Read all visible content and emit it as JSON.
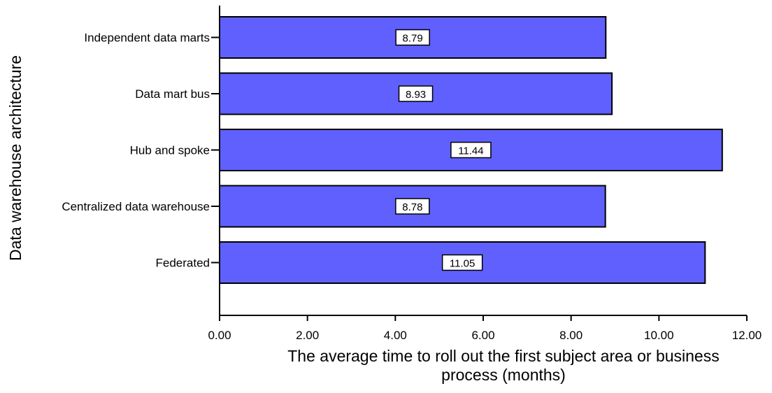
{
  "chart_data": {
    "type": "bar",
    "orientation": "horizontal",
    "categories": [
      "Independent data marts",
      "Data mart bus",
      "Hub and spoke",
      "Centralized data warehouse",
      "Federated"
    ],
    "values": [
      8.79,
      8.93,
      11.44,
      8.78,
      11.05
    ],
    "data_labels": [
      "8.79",
      "8.93",
      "11.44",
      "8.78",
      "11.05"
    ],
    "xlabel": [
      "The average time to roll out the first subject area or business",
      "process (months)"
    ],
    "ylabel": "Data warehouse architecture",
    "xlim": [
      0,
      12
    ],
    "x_ticks": [
      0,
      2,
      4,
      6,
      8,
      10,
      12
    ],
    "x_tick_labels": [
      "0.00",
      "2.00",
      "4.00",
      "6.00",
      "8.00",
      "10.00",
      "12.00"
    ],
    "bar_color": "#6060ff",
    "grid": false,
    "legend": "none"
  }
}
